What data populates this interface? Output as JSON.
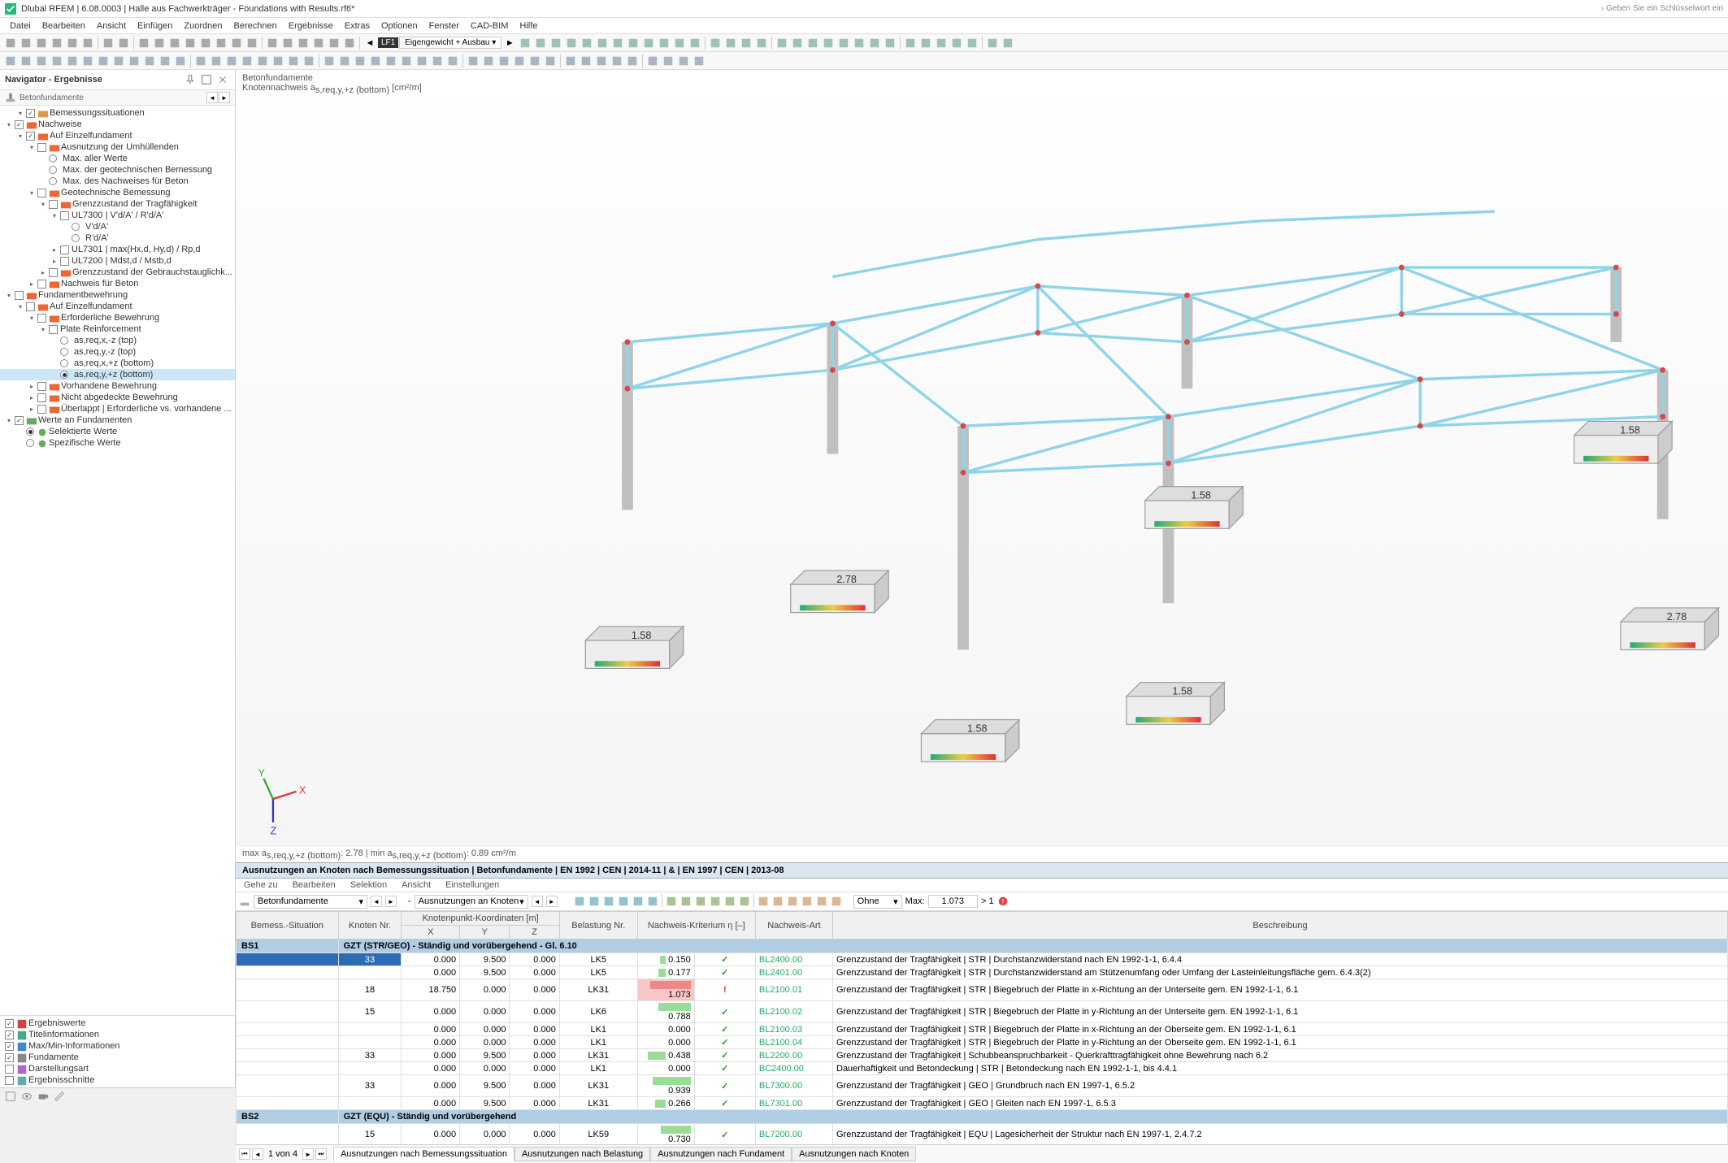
{
  "title": "Dlubal RFEM | 6.08.0003 | Halle aus Fachwerkträger - Foundations with Results.rf6*",
  "search_hint": "› Geben Sie ein Schlüsselwort ein",
  "menubar": [
    "Datei",
    "Bearbeiten",
    "Ansicht",
    "Einfügen",
    "Zuordnen",
    "Berechnen",
    "Ergebnisse",
    "Extras",
    "Optionen",
    "Fenster",
    "CAD-BIM",
    "Hilfe"
  ],
  "toolbar_lf": {
    "tag": "LF1",
    "name": "Eigengewicht + Ausbau"
  },
  "navigator": {
    "title": "Navigator - Ergebnisse",
    "subtype": "Betonfundamente",
    "tree": [
      {
        "d": 1,
        "t": "toggle",
        "exp": true,
        "chk": true,
        "ic": "#d94",
        "label": "Bemessungssituationen"
      },
      {
        "d": 0,
        "t": "toggle",
        "exp": true,
        "chk": true,
        "ic": "#e63",
        "label": "Nachweise"
      },
      {
        "d": 1,
        "t": "toggle",
        "exp": true,
        "chk": true,
        "ic": "#e63",
        "label": "Auf Einzelfundament"
      },
      {
        "d": 2,
        "t": "toggle",
        "exp": true,
        "chk": false,
        "ic": "#e63",
        "label": "Ausnutzung der Umhüllenden"
      },
      {
        "d": 3,
        "t": "radio",
        "sel": false,
        "label": "Max. aller Werte"
      },
      {
        "d": 3,
        "t": "radio",
        "sel": false,
        "label": "Max. der geotechnischen Bemessung"
      },
      {
        "d": 3,
        "t": "radio",
        "sel": false,
        "label": "Max. des Nachweises für Beton"
      },
      {
        "d": 2,
        "t": "toggle",
        "exp": true,
        "chk": false,
        "ic": "#e63",
        "label": "Geotechnische Bemessung"
      },
      {
        "d": 3,
        "t": "toggle",
        "exp": true,
        "chk": false,
        "ic": "#e63",
        "label": "Grenzzustand der Tragfähigkeit"
      },
      {
        "d": 4,
        "t": "toggle",
        "exp": true,
        "chk": false,
        "ic": null,
        "label": "UL7300 | V'd/A' / R'd/A'"
      },
      {
        "d": 5,
        "t": "radio",
        "sel": false,
        "label": "V'd/A'"
      },
      {
        "d": 5,
        "t": "radio",
        "sel": false,
        "label": "R'd/A'"
      },
      {
        "d": 4,
        "t": "toggle",
        "exp": false,
        "chk": false,
        "ic": null,
        "label": "UL7301 | max(Hx,d, Hy,d) / Rp,d"
      },
      {
        "d": 4,
        "t": "toggle",
        "exp": false,
        "chk": false,
        "ic": null,
        "label": "UL7200 | Mdst,d / Mstb,d"
      },
      {
        "d": 3,
        "t": "toggle",
        "exp": false,
        "chk": false,
        "ic": "#e63",
        "label": "Grenzzustand der Gebrauchstauglichk..."
      },
      {
        "d": 2,
        "t": "toggle",
        "exp": false,
        "chk": false,
        "ic": "#e63",
        "label": "Nachweis für Beton"
      },
      {
        "d": 0,
        "t": "toggle",
        "exp": true,
        "chk": false,
        "ic": "#e63",
        "label": "Fundamentbewehrung"
      },
      {
        "d": 1,
        "t": "toggle",
        "exp": true,
        "chk": false,
        "ic": "#e63",
        "label": "Auf Einzelfundament"
      },
      {
        "d": 2,
        "t": "toggle",
        "exp": true,
        "chk": false,
        "ic": "#e63",
        "label": "Erforderliche Bewehrung"
      },
      {
        "d": 3,
        "t": "toggle",
        "exp": true,
        "chk": false,
        "ic": null,
        "label": "Plate Reinforcement"
      },
      {
        "d": 4,
        "t": "radio",
        "sel": false,
        "label": "as,req,x,-z (top)"
      },
      {
        "d": 4,
        "t": "radio",
        "sel": false,
        "label": "as,req,y,-z (top)"
      },
      {
        "d": 4,
        "t": "radio",
        "sel": false,
        "label": "as,req,x,+z (bottom)"
      },
      {
        "d": 4,
        "t": "radio",
        "sel": true,
        "label": "as,req,y,+z (bottom)",
        "selected": true
      },
      {
        "d": 2,
        "t": "toggle",
        "exp": false,
        "chk": false,
        "ic": "#e63",
        "label": "Vorhandene Bewehrung"
      },
      {
        "d": 2,
        "t": "toggle",
        "exp": false,
        "chk": false,
        "ic": "#e63",
        "label": "Nicht abgedeckte Bewehrung"
      },
      {
        "d": 2,
        "t": "toggle",
        "exp": false,
        "chk": false,
        "ic": "#e63",
        "label": "Überlappt | Erforderliche vs. vorhandene ..."
      },
      {
        "d": 0,
        "t": "toggle",
        "exp": true,
        "chk": true,
        "ic": "#6a6",
        "label": "Werte an Fundamenten"
      },
      {
        "d": 1,
        "t": "radio",
        "sel": true,
        "ic": "#6a6",
        "label": "Selektierte Werte"
      },
      {
        "d": 1,
        "t": "radio",
        "sel": false,
        "ic": "#6a6",
        "label": "Spezifische Werte"
      }
    ],
    "footer": [
      {
        "chk": true,
        "ic": "#c44",
        "label": "Ergebniswerte"
      },
      {
        "chk": true,
        "ic": "#4a8",
        "label": "Titelinformationen"
      },
      {
        "chk": true,
        "ic": "#48c",
        "label": "Max/Min-Informationen"
      },
      {
        "chk": true,
        "ic": "#888",
        "label": "Fundamente"
      },
      {
        "chk": false,
        "ic": "#a6c",
        "label": "Darstellungsart"
      },
      {
        "chk": false,
        "ic": "#6aa",
        "label": "Ergebnisschnitte"
      }
    ]
  },
  "canvas": {
    "title": "Betonfundamente",
    "subtitle_pre": "Knotennachweis a",
    "subtitle_sub": "s,req,y,+z (bottom)",
    "subtitle_unit": " [cm²/m]",
    "footer_left": "max a",
    "footer_sub": "s,req,y,+z (bottom)",
    "footer_val1": ": 2.78 | min a",
    "footer_val2": ": 0.89 cm²/m",
    "foundation_labels": [
      "1.58",
      "2.78",
      "1.58",
      "1.58",
      "1.58",
      "2.78",
      "1.58"
    ],
    "truss_color": "#8fd4e8",
    "column_color": "#bfbfbf",
    "node_color": "#d44"
  },
  "results": {
    "title": "Ausnutzungen an Knoten nach Bemessungssituation | Betonfundamente | EN 1992 | CEN | 2014-11 | & | EN 1997 | CEN | 2013-08",
    "menu": [
      "Gehe zu",
      "Bearbeiten",
      "Selektion",
      "Ansicht",
      "Einstellungen"
    ],
    "combo1": "Betonfundamente",
    "combo2": "Ausnutzungen an Knoten",
    "filter_label": "Ohne",
    "max_label": "Max:",
    "max_val": "1.073",
    "gt": "> 1",
    "columns": [
      "Bemess.-Situation",
      "Knoten Nr.",
      "X",
      "Y",
      "Z",
      "Belastung Nr.",
      "Nachweis-Kriterium η [–]",
      "",
      "Nachweis-Art",
      "Beschreibung"
    ],
    "col_group": "Knotenpunkt-Koordinaten [m]",
    "groups": [
      {
        "label": "BS1",
        "text": "GZT (STR/GEO) - Ständig und vorübergehend - Gl. 6.10",
        "rows": [
          {
            "sel": true,
            "kn": "33",
            "x": "0.000",
            "y": "9.500",
            "z": "0.000",
            "lk": "LK5",
            "crit": "0.150",
            "ok": true,
            "bar": 0.15,
            "barcol": "#9d9",
            "art": "BL2400.00",
            "desc": "Grenzzustand der Tragfähigkeit | STR | Durchstanzwiderstand nach EN 1992-1-1, 6.4.4"
          },
          {
            "kn": "",
            "x": "0.000",
            "y": "9.500",
            "z": "0.000",
            "lk": "LK5",
            "crit": "0.177",
            "ok": true,
            "bar": 0.177,
            "barcol": "#9d9",
            "art": "BL2401.00",
            "desc": "Grenzzustand der Tragfähigkeit | STR | Durchstanzwiderstand am Stützenumfang oder Umfang der Lasteinleitungsfläche gem. 6.4.3(2)"
          },
          {
            "kn": "18",
            "x": "18.750",
            "y": "0.000",
            "z": "0.000",
            "lk": "LK31",
            "crit": "1.073",
            "ok": false,
            "bar": 1.0,
            "barcol": "#e88",
            "art": "BL2100.01",
            "desc": "Grenzzustand der Tragfähigkeit | STR | Biegebruch der Platte in x-Richtung an der Unterseite gem. EN 1992-1-1, 6.1"
          },
          {
            "kn": "15",
            "x": "0.000",
            "y": "0.000",
            "z": "0.000",
            "lk": "LK6",
            "crit": "0.788",
            "ok": true,
            "bar": 0.788,
            "barcol": "#9d9",
            "art": "BL2100.02",
            "desc": "Grenzzustand der Tragfähigkeit | STR | Biegebruch der Platte in y-Richtung an der Unterseite gem. EN 1992-1-1, 6.1"
          },
          {
            "kn": "",
            "x": "0.000",
            "y": "0.000",
            "z": "0.000",
            "lk": "LK1",
            "crit": "0.000",
            "ok": true,
            "bar": 0,
            "barcol": "#9d9",
            "art": "BL2100.03",
            "desc": "Grenzzustand der Tragfähigkeit | STR | Biegebruch der Platte in x-Richtung an der Oberseite gem. EN 1992-1-1, 6.1"
          },
          {
            "kn": "",
            "x": "0.000",
            "y": "0.000",
            "z": "0.000",
            "lk": "LK1",
            "crit": "0.000",
            "ok": true,
            "bar": 0,
            "barcol": "#9d9",
            "art": "BL2100.04",
            "desc": "Grenzzustand der Tragfähigkeit | STR | Biegebruch der Platte in y-Richtung an der Oberseite gem. EN 1992-1-1, 6.1"
          },
          {
            "kn": "33",
            "x": "0.000",
            "y": "9.500",
            "z": "0.000",
            "lk": "LK31",
            "crit": "0.438",
            "ok": true,
            "bar": 0.438,
            "barcol": "#9d9",
            "art": "BL2200.00",
            "desc": "Grenzzustand der Tragfähigkeit | Schubbeanspruchbarkeit - Querkrafttragfähigkeit ohne Bewehrung nach 6.2"
          },
          {
            "kn": "",
            "x": "0.000",
            "y": "0.000",
            "z": "0.000",
            "lk": "LK1",
            "crit": "0.000",
            "ok": true,
            "bar": 0,
            "barcol": "#9d9",
            "art": "BC2400.00",
            "desc": "Dauerhaftigkeit und Betondeckung | STR | Betondeckung nach EN 1992-1-1, bis 4.4.1"
          },
          {
            "kn": "33",
            "x": "0.000",
            "y": "9.500",
            "z": "0.000",
            "lk": "LK31",
            "crit": "0.939",
            "ok": true,
            "bar": 0.939,
            "barcol": "#9d9",
            "art": "BL7300.00",
            "desc": "Grenzzustand der Tragfähigkeit | GEO | Grundbruch nach EN 1997-1, 6.5.2"
          },
          {
            "kn": "",
            "x": "0.000",
            "y": "9.500",
            "z": "0.000",
            "lk": "LK31",
            "crit": "0.266",
            "ok": true,
            "bar": 0.266,
            "barcol": "#9d9",
            "art": "BL7301.00",
            "desc": "Grenzzustand der Tragfähigkeit | GEO | Gleiten nach EN 1997-1, 6.5.3"
          }
        ]
      },
      {
        "label": "BS2",
        "text": "GZT (EQU) - Ständig und vorübergehend",
        "rows": [
          {
            "kn": "15",
            "x": "0.000",
            "y": "0.000",
            "z": "0.000",
            "lk": "LK59",
            "crit": "0.730",
            "ok": true,
            "bar": 0.73,
            "barcol": "#9d9",
            "art": "BL7200.00",
            "desc": "Grenzzustand der Tragfähigkeit | EQU | Lagesicherheit der Struktur nach EN 1997-1, 2.4.7.2"
          }
        ]
      }
    ],
    "pager": "1 von 4",
    "tabs": [
      "Ausnutzungen nach Bemessungssituation",
      "Ausnutzungen nach Belastung",
      "Ausnutzungen nach Fundament",
      "Ausnutzungen nach Knoten"
    ],
    "active_tab": 0
  }
}
